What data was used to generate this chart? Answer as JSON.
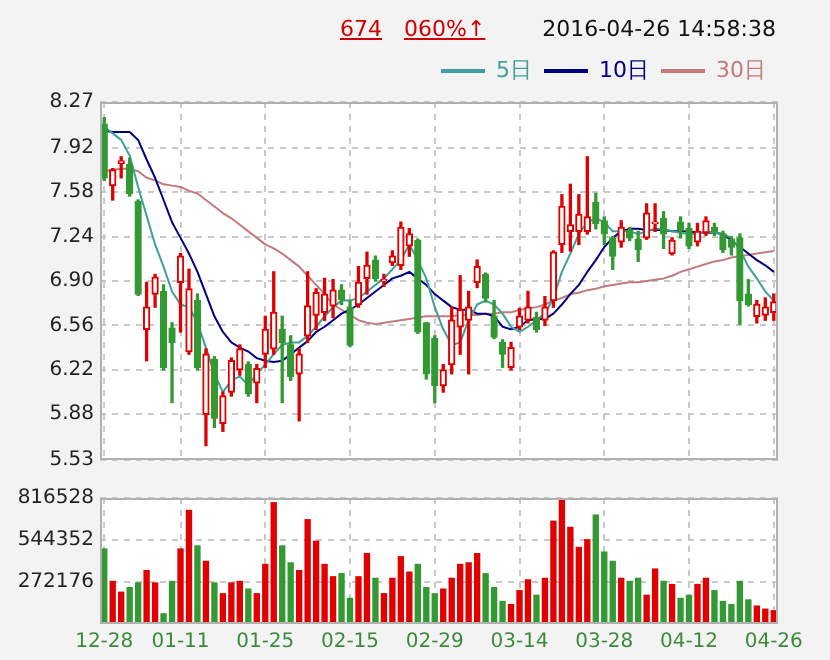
{
  "chart_data": [
    {
      "type": "candlestick",
      "annotations": [
        "674",
        "060%↑",
        "2016-04-26 14:58:38"
      ],
      "categories": [
        null,
        null,
        null,
        null,
        null,
        null,
        null,
        null,
        null,
        null,
        null,
        null,
        null,
        null,
        null,
        null,
        null,
        null,
        null,
        null,
        null,
        null,
        null,
        null,
        null,
        null,
        null,
        null,
        null,
        null,
        null,
        null,
        null,
        null,
        null,
        null,
        null,
        null,
        null,
        null,
        null,
        null,
        null,
        null,
        null,
        null,
        null,
        null,
        null,
        null,
        null,
        null,
        null,
        null,
        null,
        null,
        null,
        null,
        null,
        null,
        null,
        null,
        null,
        null,
        null,
        null,
        null,
        null,
        null,
        null,
        null,
        null,
        null,
        null,
        null,
        null,
        null,
        null,
        null,
        null
      ],
      "ohlc": [
        [
          8.1,
          8.15,
          7.67,
          7.69
        ],
        [
          7.63,
          7.76,
          7.52,
          7.75
        ],
        [
          7.8,
          7.85,
          7.69,
          7.82
        ],
        [
          7.79,
          7.84,
          7.55,
          7.57
        ],
        [
          7.51,
          7.52,
          6.79,
          6.8
        ],
        [
          6.53,
          6.89,
          6.29,
          6.7
        ],
        [
          6.8,
          6.95,
          6.7,
          6.93
        ],
        [
          6.82,
          6.87,
          6.22,
          6.24
        ],
        [
          6.54,
          6.58,
          5.97,
          6.43
        ],
        [
          6.89,
          7.11,
          6.51,
          7.09
        ],
        [
          6.36,
          6.99,
          6.34,
          6.84
        ],
        [
          6.75,
          6.8,
          6.22,
          6.24
        ],
        [
          5.88,
          6.38,
          5.64,
          6.34
        ],
        [
          6.3,
          6.32,
          5.78,
          5.85
        ],
        [
          5.81,
          6.05,
          5.75,
          6.02
        ],
        [
          6.05,
          6.31,
          6.02,
          6.29
        ],
        [
          6.22,
          6.41,
          6.18,
          6.38
        ],
        [
          6.26,
          6.28,
          6.02,
          6.04
        ],
        [
          6.12,
          6.26,
          5.97,
          6.23
        ],
        [
          6.34,
          6.63,
          6.24,
          6.53
        ],
        [
          6.38,
          6.97,
          6.34,
          6.66
        ],
        [
          6.53,
          6.63,
          5.97,
          6.43
        ],
        [
          6.41,
          6.48,
          6.14,
          6.17
        ],
        [
          6.19,
          6.38,
          5.83,
          6.34
        ],
        [
          6.48,
          6.97,
          6.43,
          6.71
        ],
        [
          6.64,
          6.84,
          6.53,
          6.81
        ],
        [
          6.66,
          6.92,
          6.6,
          6.8
        ],
        [
          6.71,
          6.91,
          6.62,
          6.83
        ],
        [
          6.83,
          6.87,
          6.72,
          6.76
        ],
        [
          6.7,
          6.75,
          6.4,
          6.41
        ],
        [
          6.72,
          7.01,
          6.7,
          6.89
        ],
        [
          6.92,
          7.12,
          6.8,
          7.02
        ],
        [
          7.06,
          7.09,
          6.9,
          6.92
        ],
        [
          6.9,
          6.95,
          6.86,
          6.91
        ],
        [
          7.04,
          7.13,
          7.02,
          7.09
        ],
        [
          7.02,
          7.35,
          6.99,
          7.31
        ],
        [
          7.17,
          7.3,
          7.09,
          7.26
        ],
        [
          7.21,
          7.22,
          6.5,
          6.51
        ],
        [
          6.58,
          6.58,
          6.15,
          6.19
        ],
        [
          6.46,
          6.48,
          5.97,
          6.1
        ],
        [
          6.1,
          6.26,
          6.05,
          6.22
        ],
        [
          6.26,
          6.7,
          6.19,
          6.6
        ],
        [
          6.55,
          6.94,
          6.34,
          6.68
        ],
        [
          6.6,
          6.82,
          6.19,
          6.7
        ],
        [
          6.89,
          7.06,
          6.85,
          7.01
        ],
        [
          6.95,
          6.96,
          6.74,
          6.77
        ],
        [
          6.63,
          6.75,
          6.46,
          6.47
        ],
        [
          6.43,
          6.45,
          6.24,
          6.34
        ],
        [
          6.24,
          6.43,
          6.22,
          6.39
        ],
        [
          6.55,
          6.69,
          6.53,
          6.63
        ],
        [
          6.6,
          6.82,
          6.58,
          6.7
        ],
        [
          6.62,
          6.66,
          6.51,
          6.53
        ],
        [
          6.6,
          6.78,
          6.56,
          6.7
        ],
        [
          6.75,
          7.13,
          6.7,
          7.12
        ],
        [
          7.18,
          7.56,
          7.12,
          7.47
        ],
        [
          7.28,
          7.64,
          7.13,
          7.33
        ],
        [
          7.28,
          7.56,
          7.18,
          7.41
        ],
        [
          7.28,
          7.85,
          7.26,
          7.39
        ],
        [
          7.5,
          7.57,
          7.3,
          7.34
        ],
        [
          7.36,
          7.39,
          7.18,
          7.26
        ],
        [
          7.23,
          7.24,
          6.99,
          7.09
        ],
        [
          7.2,
          7.36,
          7.16,
          7.31
        ],
        [
          7.29,
          7.31,
          7.21,
          7.23
        ],
        [
          7.22,
          7.28,
          7.05,
          7.14
        ],
        [
          7.23,
          7.49,
          7.22,
          7.42
        ],
        [
          7.34,
          7.49,
          7.28,
          7.35
        ],
        [
          7.38,
          7.43,
          7.15,
          7.26
        ],
        [
          7.11,
          7.23,
          7.1,
          7.21
        ],
        [
          7.35,
          7.39,
          7.23,
          7.29
        ],
        [
          7.3,
          7.34,
          7.15,
          7.17
        ],
        [
          7.2,
          7.34,
          7.17,
          7.28
        ],
        [
          7.27,
          7.39,
          7.25,
          7.36
        ],
        [
          7.31,
          7.34,
          7.25,
          7.28
        ],
        [
          7.26,
          7.28,
          7.12,
          7.14
        ],
        [
          7.22,
          7.24,
          7.1,
          7.16
        ],
        [
          7.23,
          7.26,
          6.57,
          6.75
        ],
        [
          6.8,
          6.91,
          6.71,
          6.72
        ],
        [
          6.63,
          6.75,
          6.58,
          6.72
        ],
        [
          6.64,
          6.77,
          6.6,
          6.7
        ],
        [
          6.66,
          6.8,
          6.6,
          6.74
        ]
      ],
      "series": [
        {
          "name": "5日",
          "color": "#3f9f9c",
          "type": "line",
          "values": [
            8.08,
            8.03,
            7.98,
            7.86,
            7.62,
            7.4,
            7.18,
            7.01,
            6.82,
            6.72,
            6.7,
            6.58,
            6.39,
            6.19,
            6.05,
            6.14,
            6.17,
            6.1,
            6.19,
            6.26,
            6.34,
            6.41,
            6.43,
            6.43,
            6.48,
            6.55,
            6.63,
            6.7,
            6.75,
            6.75,
            6.77,
            6.82,
            6.87,
            6.92,
            6.99,
            7.06,
            7.18,
            7.06,
            6.92,
            6.7,
            6.53,
            6.41,
            6.43,
            6.6,
            6.72,
            6.75,
            6.72,
            6.65,
            6.55,
            6.51,
            6.55,
            6.6,
            6.65,
            6.77,
            6.97,
            7.11,
            7.26,
            7.35,
            7.38,
            7.35,
            7.28,
            7.28,
            7.28,
            7.26,
            7.28,
            7.3,
            7.3,
            7.28,
            7.27,
            7.26,
            7.26,
            7.28,
            7.27,
            7.26,
            7.23,
            7.14,
            7.01,
            6.92,
            6.82,
            6.75
          ]
        },
        {
          "name": "10日",
          "color": "#000080",
          "type": "line",
          "values": [
            8.05,
            8.04,
            8.04,
            8.04,
            7.98,
            7.83,
            7.69,
            7.52,
            7.35,
            7.23,
            7.11,
            6.97,
            6.8,
            6.63,
            6.51,
            6.43,
            6.39,
            6.36,
            6.31,
            6.29,
            6.28,
            6.29,
            6.34,
            6.39,
            6.44,
            6.51,
            6.55,
            6.6,
            6.65,
            6.68,
            6.72,
            6.77,
            6.82,
            6.87,
            6.92,
            6.94,
            6.97,
            6.92,
            6.87,
            6.8,
            6.75,
            6.7,
            6.68,
            6.68,
            6.65,
            6.65,
            6.63,
            6.55,
            6.53,
            6.55,
            6.6,
            6.61,
            6.61,
            6.65,
            6.72,
            6.8,
            6.87,
            6.97,
            7.06,
            7.16,
            7.23,
            7.28,
            7.3,
            7.3,
            7.29,
            7.29,
            7.29,
            7.28,
            7.28,
            7.28,
            7.27,
            7.27,
            7.27,
            7.26,
            7.21,
            7.16,
            7.11,
            7.06,
            7.02,
            6.97
          ]
        },
        {
          "name": "30日",
          "color": "#c47a7a",
          "type": "line",
          "values": [
            7.74,
            7.75,
            7.76,
            7.76,
            7.74,
            7.69,
            7.67,
            7.64,
            7.63,
            7.62,
            7.59,
            7.57,
            7.52,
            7.47,
            7.42,
            7.38,
            7.33,
            7.28,
            7.23,
            7.18,
            7.15,
            7.11,
            7.06,
            7.01,
            6.94,
            6.87,
            6.8,
            6.72,
            6.68,
            6.64,
            6.6,
            6.58,
            6.57,
            6.58,
            6.59,
            6.6,
            6.61,
            6.62,
            6.63,
            6.63,
            6.63,
            6.63,
            6.64,
            6.64,
            6.64,
            6.65,
            6.65,
            6.66,
            6.66,
            6.68,
            6.69,
            6.7,
            6.72,
            6.75,
            6.77,
            6.8,
            6.81,
            6.83,
            6.84,
            6.86,
            6.87,
            6.88,
            6.89,
            6.89,
            6.9,
            6.91,
            6.92,
            6.94,
            6.97,
            6.99,
            7.01,
            7.03,
            7.05,
            7.06,
            7.08,
            7.09,
            7.1,
            7.11,
            7.12,
            7.13
          ]
        }
      ],
      "ylim": [
        5.53,
        8.27
      ],
      "yticks": [
        8.27,
        7.92,
        7.58,
        7.24,
        {
          "value": 6.9,
          "label": "6.90"
        },
        6.56,
        6.22,
        5.88,
        5.53
      ],
      "grid": true,
      "legend": "top right",
      "tick_labels": "y"
    },
    {
      "type": "bar",
      "categories": [
        "12-28",
        null,
        null,
        null,
        null,
        null,
        null,
        null,
        null,
        "01-11",
        null,
        null,
        null,
        null,
        null,
        null,
        null,
        null,
        null,
        "01-25",
        null,
        null,
        null,
        null,
        null,
        null,
        null,
        null,
        null,
        "02-15",
        null,
        null,
        null,
        null,
        null,
        null,
        null,
        null,
        null,
        "02-29",
        null,
        null,
        null,
        null,
        null,
        null,
        null,
        null,
        null,
        "03-14",
        null,
        null,
        null,
        null,
        null,
        null,
        null,
        null,
        null,
        "03-28",
        null,
        null,
        null,
        null,
        null,
        null,
        null,
        null,
        null,
        "04-12",
        null,
        null,
        null,
        null,
        null,
        null,
        null,
        null,
        null,
        "04-26"
      ],
      "values": [
        490000,
        280000,
        210000,
        240000,
        270000,
        350000,
        270000,
        70000,
        280000,
        490000,
        740000,
        510000,
        410000,
        270000,
        200000,
        270000,
        280000,
        230000,
        200000,
        390000,
        790000,
        510000,
        400000,
        350000,
        680000,
        540000,
        390000,
        310000,
        330000,
        170000,
        310000,
        460000,
        300000,
        200000,
        300000,
        440000,
        340000,
        390000,
        240000,
        200000,
        230000,
        300000,
        390000,
        400000,
        460000,
        330000,
        240000,
        150000,
        130000,
        220000,
        290000,
        190000,
        300000,
        670000,
        810000,
        630000,
        500000,
        550000,
        710000,
        470000,
        410000,
        300000,
        280000,
        300000,
        190000,
        360000,
        280000,
        260000,
        170000,
        190000,
        260000,
        300000,
        220000,
        150000,
        130000,
        280000,
        160000,
        120000,
        100000,
        90000
      ],
      "colors": [
        "#339933",
        "#e00000",
        "#e00000",
        "#339933",
        "#339933",
        "#e00000",
        "#e00000",
        "#339933",
        "#339933",
        "#e00000",
        "#e00000",
        "#339933",
        "#e00000",
        "#339933",
        "#e00000",
        "#e00000",
        "#e00000",
        "#339933",
        "#e00000",
        "#e00000",
        "#e00000",
        "#339933",
        "#339933",
        "#e00000",
        "#e00000",
        "#e00000",
        "#e00000",
        "#e00000",
        "#339933",
        "#339933",
        "#e00000",
        "#e00000",
        "#339933",
        "#e00000",
        "#e00000",
        "#e00000",
        "#e00000",
        "#339933",
        "#339933",
        "#339933",
        "#e00000",
        "#e00000",
        "#e00000",
        "#e00000",
        "#e00000",
        "#339933",
        "#339933",
        "#339933",
        "#e00000",
        "#e00000",
        "#e00000",
        "#339933",
        "#e00000",
        "#e00000",
        "#e00000",
        "#e00000",
        "#e00000",
        "#e00000",
        "#339933",
        "#339933",
        "#339933",
        "#e00000",
        "#339933",
        "#339933",
        "#e00000",
        "#e00000",
        "#339933",
        "#e00000",
        "#339933",
        "#339933",
        "#e00000",
        "#e00000",
        "#339933",
        "#339933",
        "#339933",
        "#339933",
        "#339933",
        "#e00000",
        "#e00000",
        "#e00000"
      ],
      "ylim": [
        0,
        816528
      ],
      "yticks": [
        272176,
        544352,
        816528
      ],
      "grid": true
    }
  ]
}
